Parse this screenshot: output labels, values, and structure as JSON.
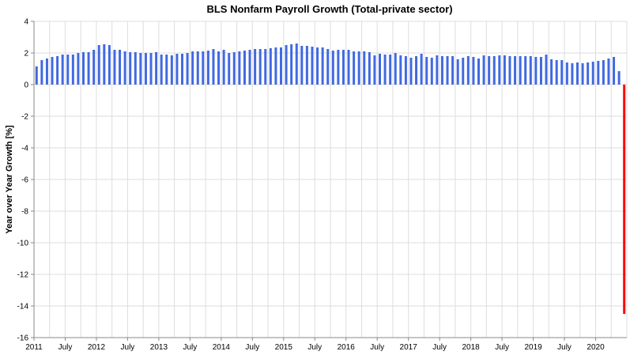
{
  "chart_data": {
    "type": "bar",
    "title": "BLS Nonfarm Payroll Growth (Total-private sector)",
    "xlabel": "",
    "ylabel": "Year over Year Growth [%]",
    "ylim": [
      -16,
      4
    ],
    "yticks": [
      "4",
      "2",
      "0",
      "-2",
      "-4",
      "-6",
      "-8",
      "-10",
      "-12",
      "-14",
      "-16"
    ],
    "xticks": [
      "2011",
      "July",
      "2012",
      "July",
      "2013",
      "July",
      "2014",
      "July",
      "2015",
      "July",
      "2016",
      "July",
      "2017",
      "July",
      "2018",
      "July",
      "2019",
      "July",
      "2020"
    ],
    "grid": true,
    "x_start": "2011-01",
    "positive_color": "#4169e1",
    "negative_color": "#ff0000",
    "values": [
      1.15,
      1.55,
      1.65,
      1.75,
      1.8,
      1.9,
      1.9,
      1.9,
      2.0,
      2.05,
      2.05,
      2.2,
      2.5,
      2.55,
      2.5,
      2.2,
      2.2,
      2.1,
      2.05,
      2.05,
      2.0,
      2.0,
      2.0,
      2.05,
      1.9,
      1.9,
      1.85,
      1.95,
      1.95,
      2.0,
      2.1,
      2.1,
      2.1,
      2.15,
      2.25,
      2.1,
      2.2,
      2.0,
      2.05,
      2.1,
      2.15,
      2.2,
      2.25,
      2.25,
      2.25,
      2.3,
      2.35,
      2.35,
      2.5,
      2.55,
      2.6,
      2.45,
      2.45,
      2.4,
      2.35,
      2.35,
      2.25,
      2.15,
      2.2,
      2.2,
      2.2,
      2.1,
      2.1,
      2.1,
      2.05,
      1.85,
      1.95,
      1.9,
      1.9,
      2.0,
      1.85,
      1.8,
      1.7,
      1.8,
      1.95,
      1.75,
      1.7,
      1.85,
      1.8,
      1.8,
      1.8,
      1.6,
      1.7,
      1.8,
      1.75,
      1.65,
      1.85,
      1.8,
      1.8,
      1.85,
      1.85,
      1.8,
      1.8,
      1.8,
      1.8,
      1.8,
      1.75,
      1.75,
      1.9,
      1.6,
      1.55,
      1.55,
      1.4,
      1.35,
      1.4,
      1.35,
      1.4,
      1.45,
      1.5,
      1.55,
      1.65,
      1.75,
      0.85,
      -14.5
    ]
  }
}
